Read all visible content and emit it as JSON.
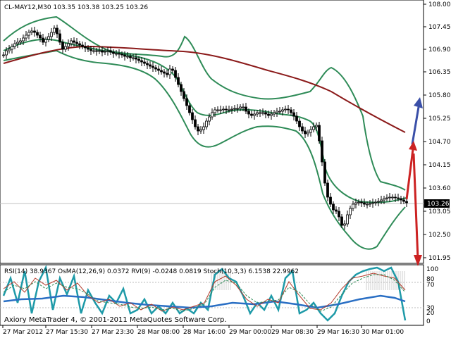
{
  "main_header": "CL-MAY12,M30  103.35 103.38 103.25 103.26",
  "current_price": "103.26",
  "indicator_header": "RSI(14) 38.9367  OsMA(12,26,9) 0.0372  RVI(9) -0.0248 0.0819  Stoch(10,3,3) 6.1538 22.9962",
  "watermark": "Axiory MetaTrader 4, © 2001-2011 MetaQuotes Software Corp.",
  "price_axis_labels": [
    "108.00",
    "107.45",
    "106.90",
    "106.35",
    "105.80",
    "105.25",
    "104.70",
    "104.15",
    "103.60",
    "103.05",
    "102.50",
    "101.95"
  ],
  "indicator_axis_labels": [
    "100",
    "80",
    "70",
    "30",
    "20",
    "0"
  ],
  "time_axis_labels": [
    "27 Mar 2012",
    "27 Mar 15:30",
    "27 Mar 23:30",
    "28 Mar 08:00",
    "28 Mar 16:00",
    "29 Mar 00:00",
    "29 Mar 08:30",
    "29 Mar 16:30",
    "30 Mar 01:00"
  ],
  "colors": {
    "background": "#ffffff",
    "candles": "#000000",
    "bollinger": "#2e8b57",
    "moving_average": "#8b1a1a",
    "arrow_up": "#3a4fa8",
    "arrow_red": "#cc2222",
    "indicator_cyan": "#1e9aa8",
    "indicator_blue": "#2a6fc4",
    "indicator_red": "#b33a2a",
    "indicator_green": "#2e8b57"
  }
}
